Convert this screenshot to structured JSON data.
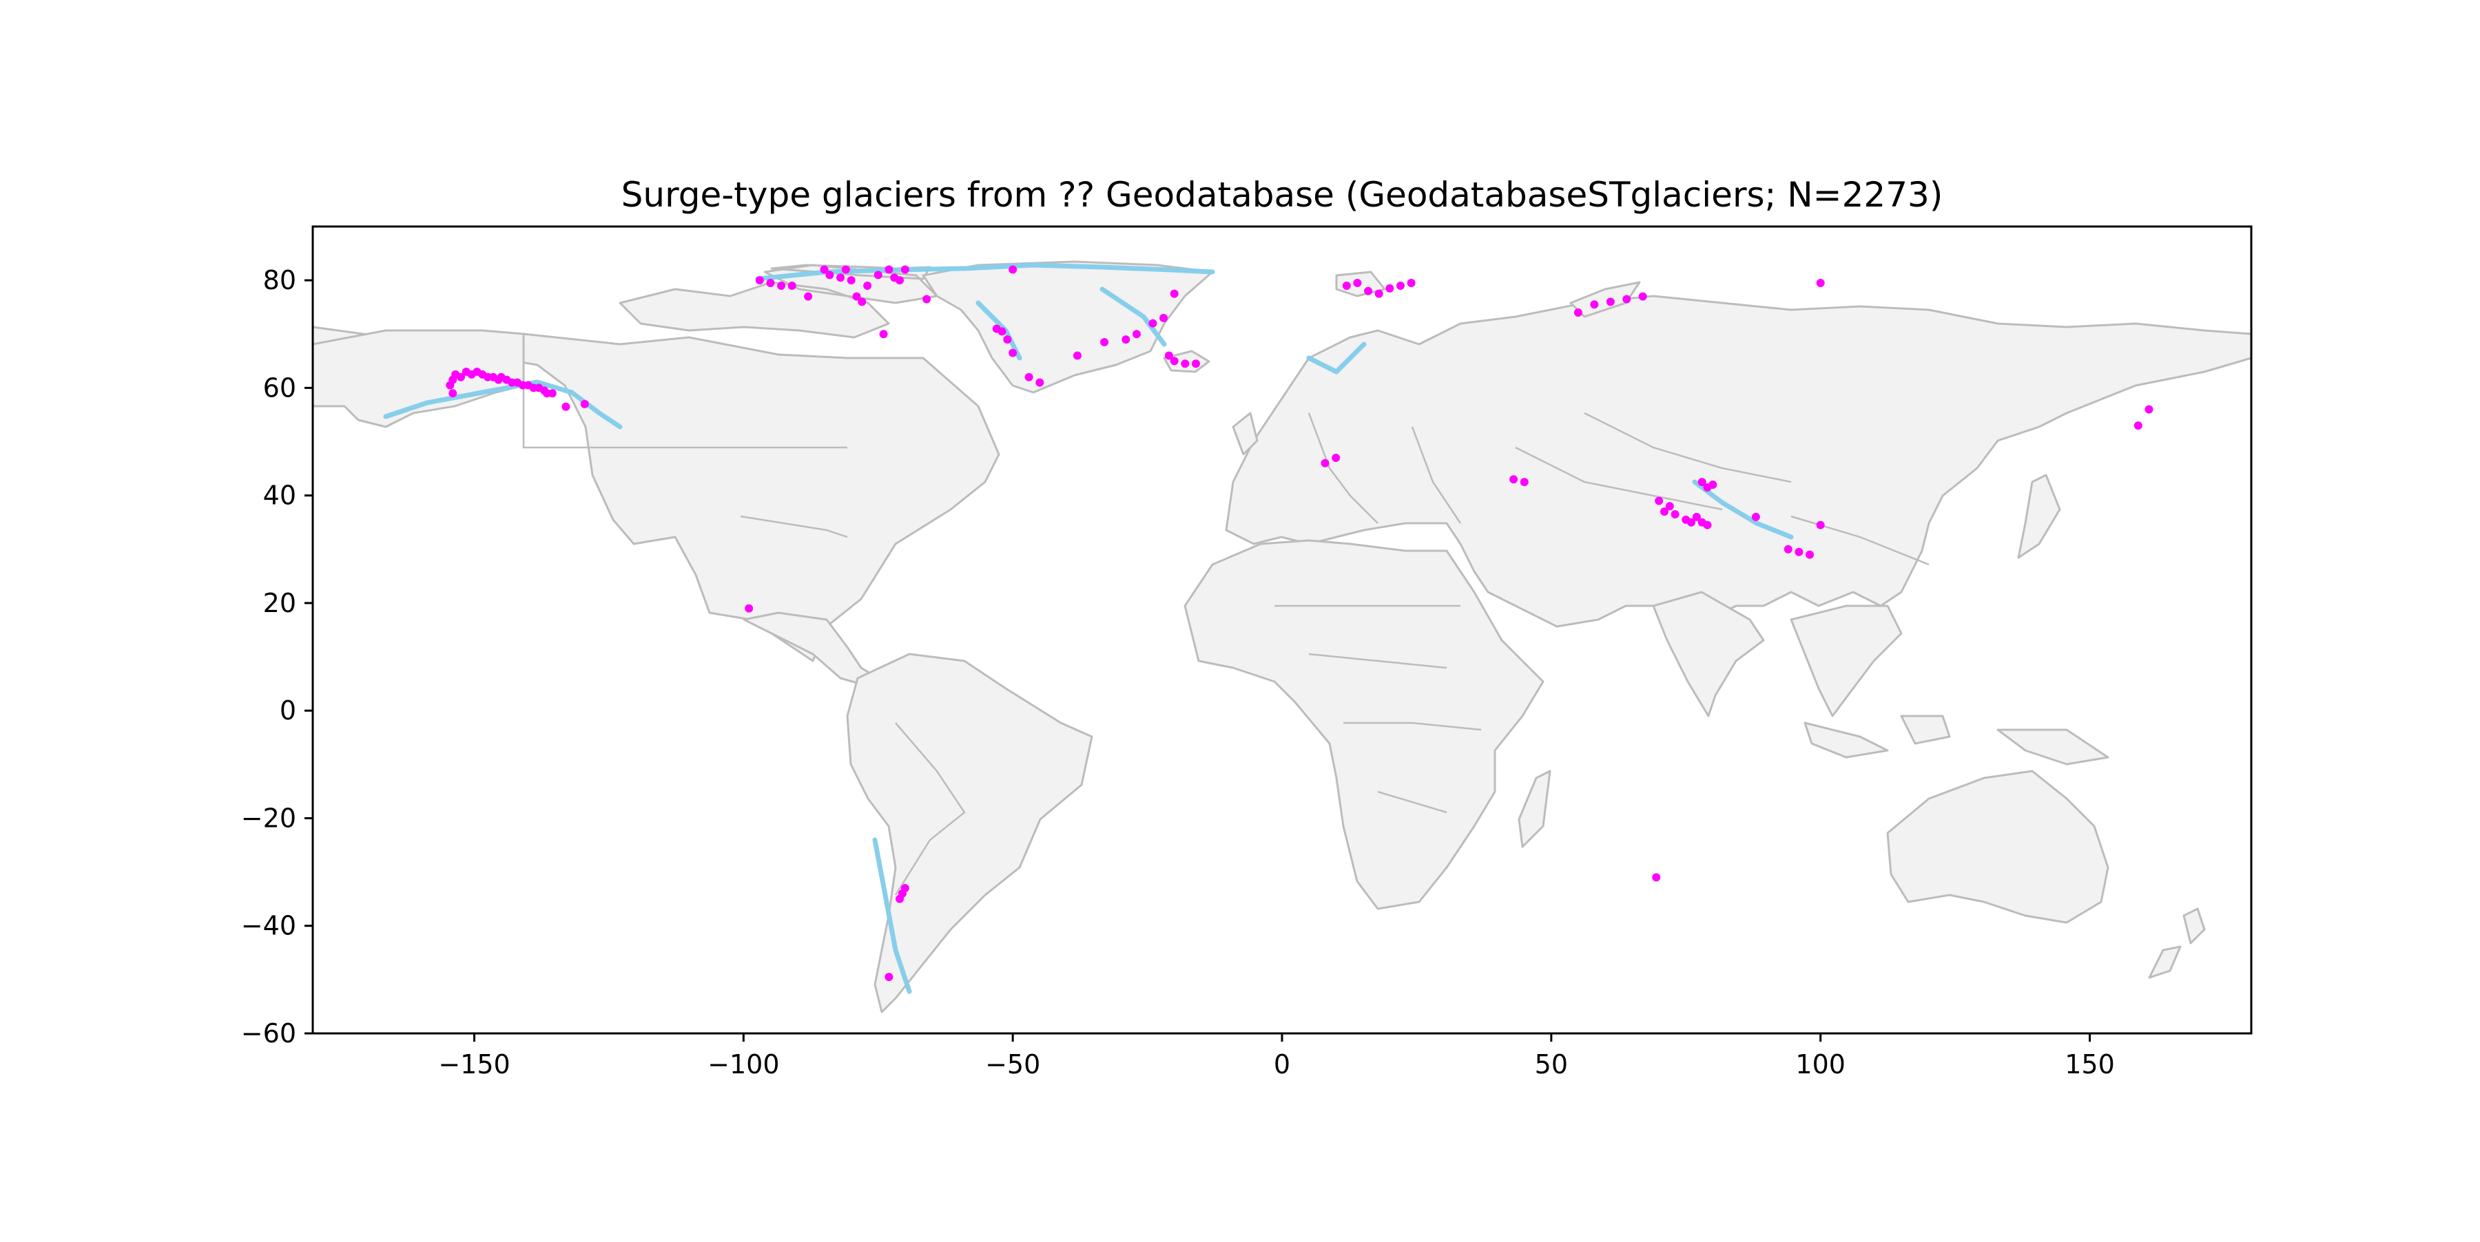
{
  "title": "Surge-type glaciers from ?? Geodatabase (GeodatabaseSTglaciers; N=2273)",
  "colors": {
    "land": "#f2f2f2",
    "borders": "#bcbcbc",
    "glacier_outlines": "#87ceeb",
    "points": "#ff00ff"
  },
  "chart_data": {
    "type": "scatter",
    "xlim": [
      -180,
      180
    ],
    "ylim": [
      -60,
      90
    ],
    "xticks": [
      -150,
      -100,
      -50,
      0,
      50,
      100,
      150
    ],
    "yticks": [
      -60,
      -40,
      -20,
      0,
      20,
      40,
      60,
      80
    ],
    "xtick_labels": [
      "−150",
      "−100",
      "−50",
      "0",
      "50",
      "100",
      "150"
    ],
    "ytick_labels": [
      "−60",
      "−40",
      "−20",
      "0",
      "20",
      "40",
      "60",
      "80"
    ],
    "grid": false,
    "basemap": "world country boundaries (light grey fill, grey outlines) with glacier extents in light blue",
    "series": [
      {
        "marker": "circle",
        "points": [
          [
            -154,
            59
          ],
          [
            -154.5,
            60.5
          ],
          [
            -154,
            61.5
          ],
          [
            -153.5,
            62.5
          ],
          [
            -152.5,
            62
          ],
          [
            -151.5,
            63
          ],
          [
            -150.5,
            62.5
          ],
          [
            -149.5,
            63
          ],
          [
            -148.5,
            62.5
          ],
          [
            -147.5,
            62
          ],
          [
            -146.5,
            62
          ],
          [
            -145.5,
            61.5
          ],
          [
            -145,
            62
          ],
          [
            -144,
            61.5
          ],
          [
            -143,
            61
          ],
          [
            -142,
            61
          ],
          [
            -141,
            60.5
          ],
          [
            -140,
            60.5
          ],
          [
            -139,
            60
          ],
          [
            -138,
            60
          ],
          [
            -137,
            59.5
          ],
          [
            -136.5,
            59
          ],
          [
            -135.5,
            59
          ],
          [
            -133,
            56.5
          ],
          [
            -129.5,
            57
          ],
          [
            -97,
            80
          ],
          [
            -95,
            79.5
          ],
          [
            -93,
            79
          ],
          [
            -91,
            79
          ],
          [
            -88,
            77
          ],
          [
            -85,
            82
          ],
          [
            -84,
            81
          ],
          [
            -82,
            80.5
          ],
          [
            -81,
            82
          ],
          [
            -80,
            80
          ],
          [
            -79,
            77
          ],
          [
            -78,
            76
          ],
          [
            -77,
            79
          ],
          [
            -75,
            81
          ],
          [
            -73,
            82
          ],
          [
            -72,
            80.5
          ],
          [
            -71,
            80
          ],
          [
            -70,
            82
          ],
          [
            -74,
            70
          ],
          [
            -66,
            76.5
          ],
          [
            -53,
            71
          ],
          [
            -52,
            70.5
          ],
          [
            -51,
            69
          ],
          [
            -50,
            66.5
          ],
          [
            -47,
            62
          ],
          [
            -45,
            61
          ],
          [
            -50,
            82
          ],
          [
            -38,
            66
          ],
          [
            -33,
            68.5
          ],
          [
            -29,
            69
          ],
          [
            -27,
            70
          ],
          [
            -24,
            72
          ],
          [
            -22,
            73
          ],
          [
            -20,
            77.5
          ],
          [
            -21,
            66
          ],
          [
            -20,
            65
          ],
          [
            -18,
            64.5
          ],
          [
            -16,
            64.5
          ],
          [
            12,
            79
          ],
          [
            14,
            79.5
          ],
          [
            16,
            78
          ],
          [
            18,
            77.5
          ],
          [
            20,
            78.5
          ],
          [
            22,
            79
          ],
          [
            24,
            79.5
          ],
          [
            55,
            74
          ],
          [
            58,
            75.5
          ],
          [
            61,
            76
          ],
          [
            64,
            76.5
          ],
          [
            67,
            77
          ],
          [
            100,
            79.5
          ],
          [
            8,
            46
          ],
          [
            10,
            47
          ],
          [
            43,
            43
          ],
          [
            45,
            42.5
          ],
          [
            70,
            39
          ],
          [
            72,
            38
          ],
          [
            71,
            37
          ],
          [
            73,
            36.5
          ],
          [
            75,
            35.5
          ],
          [
            76,
            35
          ],
          [
            77,
            36
          ],
          [
            78,
            35
          ],
          [
            79,
            34.5
          ],
          [
            80,
            42
          ],
          [
            78,
            42.5
          ],
          [
            79,
            41.5
          ],
          [
            88,
            36
          ],
          [
            94,
            30
          ],
          [
            96,
            29.5
          ],
          [
            98,
            29
          ],
          [
            100,
            34.5
          ],
          [
            -99,
            19
          ],
          [
            159,
            53
          ],
          [
            161,
            56
          ],
          [
            -70,
            -33
          ],
          [
            -70.5,
            -34
          ],
          [
            -71,
            -35
          ],
          [
            -73,
            -49.5
          ],
          [
            69.5,
            -31
          ]
        ]
      }
    ]
  }
}
